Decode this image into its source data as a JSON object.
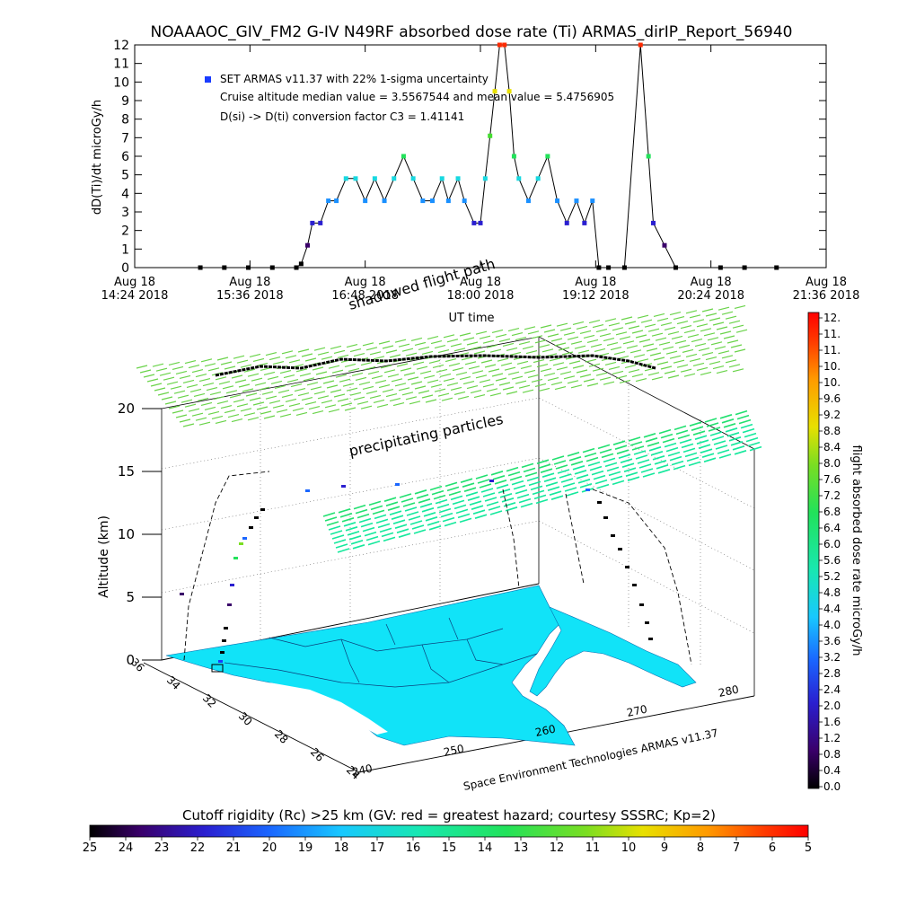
{
  "title": "NOAAAOC_GIV_FM2 G-IV    N49RF  absorbed dose rate (Ti) ARMAS_dirIP_Report_56940",
  "chart_data": [
    {
      "type": "line",
      "name_in_ui": "dose-rate-timeseries",
      "ylabel": "dD(Ti)/dt microGy/h",
      "xlabel": "UT time",
      "ylim": [
        0,
        12
      ],
      "yticks": [
        0,
        1,
        2,
        3,
        4,
        5,
        6,
        7,
        8,
        9,
        10,
        11,
        12
      ],
      "xlim_minutes_utc": [
        "14:24",
        "21:36"
      ],
      "xtick_labels": [
        [
          "Aug 18",
          "14:24 2018"
        ],
        [
          "Aug 18",
          "15:36 2018"
        ],
        [
          "Aug 18",
          "16:48 2018"
        ],
        [
          "Aug 18",
          "18:00 2018"
        ],
        [
          "Aug 18",
          "19:12 2018"
        ],
        [
          "Aug 18",
          "20:24 2018"
        ],
        [
          "Aug 18",
          "21:36 2018"
        ]
      ],
      "annotations": [
        "SET ARMAS v11.37 with 22% 1-sigma uncertainty",
        "Cruise altitude median value = 3.5567544 and mean value = 5.4756905",
        "D(si) -> D(ti) conversion factor C3 = 1.41141"
      ],
      "series": [
        {
          "x": [
            "15:05",
            "15:20",
            "15:35",
            "15:50",
            "16:05",
            "16:08",
            "16:12",
            "16:15",
            "16:20",
            "16:25",
            "16:30",
            "16:36",
            "16:42",
            "16:48",
            "16:54",
            "17:00",
            "17:06",
            "17:12",
            "17:18",
            "17:24",
            "17:30",
            "17:36",
            "17:40",
            "17:46",
            "17:50",
            "17:56",
            "18:00",
            "18:03",
            "18:06",
            "18:09",
            "18:12",
            "18:15",
            "18:18",
            "18:21",
            "18:24",
            "18:30",
            "18:36",
            "18:42",
            "18:48",
            "18:54",
            "19:00",
            "19:05",
            "19:10",
            "19:14",
            "19:20",
            "19:30",
            "19:40",
            "19:45",
            "19:48",
            "19:55",
            "20:02",
            "20:30",
            "20:45",
            "21:05"
          ],
          "y": [
            0,
            0,
            0,
            0,
            0,
            0.2,
            1.2,
            2.4,
            2.4,
            3.6,
            3.6,
            4.8,
            4.8,
            3.6,
            4.8,
            3.6,
            4.8,
            6.0,
            4.8,
            3.6,
            3.6,
            4.8,
            3.6,
            4.8,
            3.6,
            2.4,
            2.4,
            4.8,
            7.1,
            9.5,
            12,
            12,
            9.5,
            6.0,
            4.8,
            3.6,
            4.8,
            6.0,
            3.6,
            2.4,
            3.6,
            2.4,
            3.6,
            0,
            0,
            0,
            12,
            6.0,
            2.4,
            1.2,
            0,
            0,
            0,
            0
          ]
        }
      ]
    },
    {
      "type": "heatmap",
      "name_in_ui": "3d-flight-track",
      "zlabel": "Altitude (km)",
      "zlim": [
        0,
        20
      ],
      "zticks": [
        "0",
        "5",
        "10",
        "15",
        "20"
      ],
      "lat_ticks": [
        "36",
        "34",
        "32",
        "30",
        "28",
        "26",
        "24"
      ],
      "lon_ticks": [
        "240",
        "250",
        "260",
        "270",
        "280"
      ],
      "labels": {
        "shadowed": "shadowed flight path",
        "precip": "precipitating particles",
        "credit": "Space Environment Technologies ARMAS v11.37"
      }
    }
  ],
  "colorbar_dose": {
    "label": "flight absorbed dose rate microGy/h",
    "ticks": [
      "12.",
      "11.",
      "11.",
      "10.",
      "10.",
      "9.6",
      "9.2",
      "8.8",
      "8.4",
      "8.0",
      "7.6",
      "7.2",
      "6.8",
      "6.4",
      "6.0",
      "5.6",
      "5.2",
      "4.8",
      "4.4",
      "4.0",
      "3.6",
      "3.2",
      "2.8",
      "2.4",
      "2.0",
      "1.6",
      "1.2",
      "0.8",
      "0.4",
      "0.0"
    ]
  },
  "colorbar_rc": {
    "label": "Cutoff rigidity (Rc) >25 km (GV: red = greatest hazard; courtesy SSSRC; Kp=2)",
    "ticks": [
      "25",
      "24",
      "23",
      "22",
      "21",
      "20",
      "19",
      "18",
      "17",
      "16",
      "15",
      "14",
      "13",
      "12",
      "11",
      "10",
      "9",
      "8",
      "7",
      "6",
      "5"
    ]
  },
  "colors": {
    "cyan": "#1ee8ff",
    "mapfill": "#11e3f8",
    "green": "#6ad34a",
    "teal": "#15e89c"
  }
}
